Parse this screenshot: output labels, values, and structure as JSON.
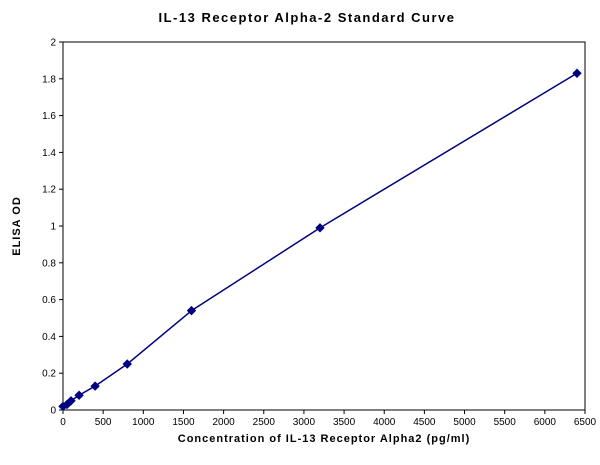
{
  "chart_data": {
    "type": "line",
    "title": "IL-13 Receptor Alpha-2 Standard Curve",
    "xlabel": "Concentration of IL-13 Receptor Alpha2 (pg/ml)",
    "ylabel": "ELISA OD",
    "x": [
      0,
      50,
      100,
      200,
      400,
      800,
      1600,
      3200,
      6400
    ],
    "y": [
      0.02,
      0.03,
      0.05,
      0.08,
      0.13,
      0.25,
      0.54,
      0.99,
      1.83
    ],
    "xlim": [
      0,
      6500
    ],
    "ylim": [
      0,
      2
    ],
    "xtick_step": 500,
    "ytick_step": 0.2,
    "grid": false,
    "legend": "none",
    "line_color": "#000080",
    "marker": "diamond",
    "marker_color": "#000080",
    "plot_border_color": "#000000",
    "background_color": "#ffffff"
  }
}
